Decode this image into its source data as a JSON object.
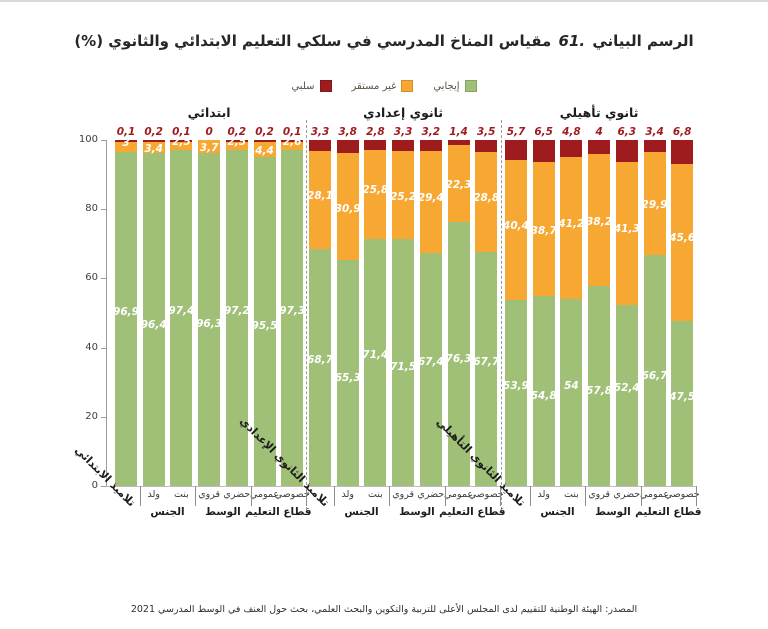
{
  "title": {
    "label": "الرسم البياني",
    "number": "61.",
    "text": "مقياس المناخ المدرسي في سلكي التعليم الابتدائي والثانوي (%)"
  },
  "source": "المصدر: الهيئة الوطنية للتقييم لدى المجلس الأعلى للتربية والتكوين والبحث العلمي، بحث حول العنف في الوسط المدرسي 2021",
  "chart_data": {
    "type": "bar",
    "variant": "stacked-100-percent",
    "unit": "%",
    "ylim": [
      0,
      100
    ],
    "yticks": [
      0,
      20,
      40,
      60,
      80,
      100
    ],
    "grid": false,
    "legend_position": "top-center",
    "series": [
      {
        "key": "positive",
        "name": "إيجابي",
        "color": "#a0c078"
      },
      {
        "key": "unstable",
        "name": "غير مستقر",
        "color": "#f7a832"
      },
      {
        "key": "negative",
        "name": "سلبي",
        "color": "#9e1b1e"
      }
    ],
    "sub_categories": [
      "ولد",
      "بنت",
      "قروي",
      "حضري",
      "عمومي",
      "خصوصي"
    ],
    "sub_groups": [
      {
        "name": "الجنس",
        "bars": [
          1,
          2
        ]
      },
      {
        "name": "الوسط",
        "bars": [
          3,
          4
        ]
      },
      {
        "name": "قطاع التعليم",
        "bars": [
          5,
          6
        ]
      }
    ],
    "groups": [
      {
        "header": "ابتدائي",
        "first_bar_label": "تلاميذ الابتدائي",
        "bars": [
          {
            "positive": "96,9",
            "unstable": "3",
            "negative": "0,1"
          },
          {
            "positive": "96,4",
            "unstable": "3,4",
            "negative": "0,2"
          },
          {
            "positive": "97,4",
            "unstable": "2,5",
            "negative": "0,1"
          },
          {
            "positive": "96,3",
            "unstable": "3,7",
            "negative": "0"
          },
          {
            "positive": "97,2",
            "unstable": "2,5",
            "negative": "0,2"
          },
          {
            "positive": "95,5",
            "unstable": "4,4",
            "negative": "0,2"
          },
          {
            "positive": "97,3",
            "unstable": "2,6",
            "negative": "0,1"
          }
        ]
      },
      {
        "header": "ثانوي إعدادي",
        "first_bar_label": "تلاميذ الثانوي الإعدادي",
        "bars": [
          {
            "positive": "68,7",
            "unstable": "28,1",
            "negative": "3,3"
          },
          {
            "positive": "65,3",
            "unstable": "30,9",
            "negative": "3,8"
          },
          {
            "positive": "71,4",
            "unstable": "25,8",
            "negative": "2,8"
          },
          {
            "positive": "71,5",
            "unstable": "25,2",
            "negative": "3,3"
          },
          {
            "positive": "67,4",
            "unstable": "29,4",
            "negative": "3,2"
          },
          {
            "positive": "76,3",
            "unstable": "22,3",
            "negative": "1,4"
          },
          {
            "positive": "67,7",
            "unstable": "28,8",
            "negative": "3,5"
          }
        ]
      },
      {
        "header": "ثانوي تأهيلي",
        "first_bar_label": "تلاميذ الثانوي التأهيلي",
        "bars": [
          {
            "positive": "53,9",
            "unstable": "40,4",
            "negative": "5,7"
          },
          {
            "positive": "54,8",
            "unstable": "38,7",
            "negative": "6,5"
          },
          {
            "positive": "54",
            "unstable": "41,2",
            "negative": "4,8"
          },
          {
            "positive": "57,8",
            "unstable": "38,2",
            "negative": "4"
          },
          {
            "positive": "52,4",
            "unstable": "41,3",
            "negative": "6,3"
          },
          {
            "positive": "66,7",
            "unstable": "29,9",
            "negative": "3,4"
          },
          {
            "positive": "47,5",
            "unstable": "45,6",
            "negative": "6,8"
          }
        ]
      }
    ]
  }
}
